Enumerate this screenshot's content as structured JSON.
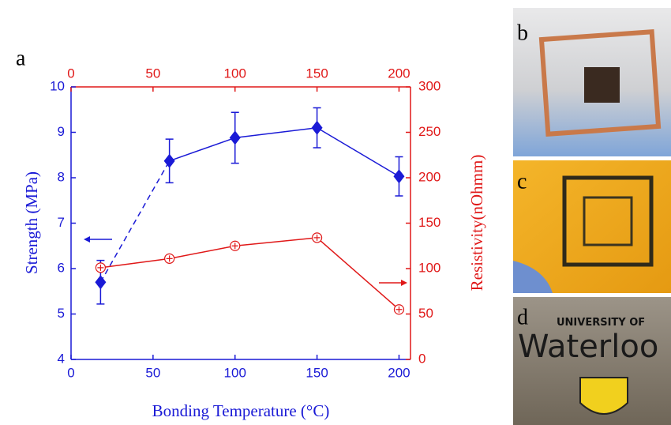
{
  "chart_data": {
    "type": "line",
    "panel_label": "a",
    "xlabel": "Bonding Temperature (°C)",
    "ylabel": "Strength (MPa)",
    "y2label": "Resistivity(nOhmm)",
    "xlim": [
      0,
      207
    ],
    "xticks": [
      0,
      50,
      100,
      150,
      200
    ],
    "x2lim": [
      0,
      207
    ],
    "x2ticks": [
      0,
      50,
      100,
      150,
      200
    ],
    "ylim": [
      4,
      10
    ],
    "yticks": [
      4,
      5,
      6,
      7,
      8,
      9,
      10
    ],
    "y2lim": [
      0,
      300
    ],
    "y2ticks": [
      0,
      50,
      100,
      150,
      200,
      250,
      300
    ],
    "axis_colors": {
      "x": "#1a1ad6",
      "y": "#1a1ad6",
      "x2": "#e01818",
      "y2": "#e01818"
    },
    "x": [
      18,
      60,
      100,
      150,
      200
    ],
    "series": [
      {
        "color": "#1a1ad6",
        "marker": "diamond",
        "values": [
          5.7,
          8.37,
          8.88,
          9.1,
          8.03
        ],
        "errors": [
          0.48,
          0.48,
          0.56,
          0.44,
          0.43
        ],
        "dashed_segments": [
          0
        ]
      },
      {
        "color": "#e01818",
        "marker": "circle-plus",
        "axis": "y2",
        "values": [
          101,
          111,
          125,
          134,
          55
        ]
      }
    ]
  },
  "photos": [
    {
      "label": "b"
    },
    {
      "label": "c"
    },
    {
      "label": "d",
      "texts": [
        "UNIVERSITY OF",
        "Waterloo"
      ]
    }
  ]
}
